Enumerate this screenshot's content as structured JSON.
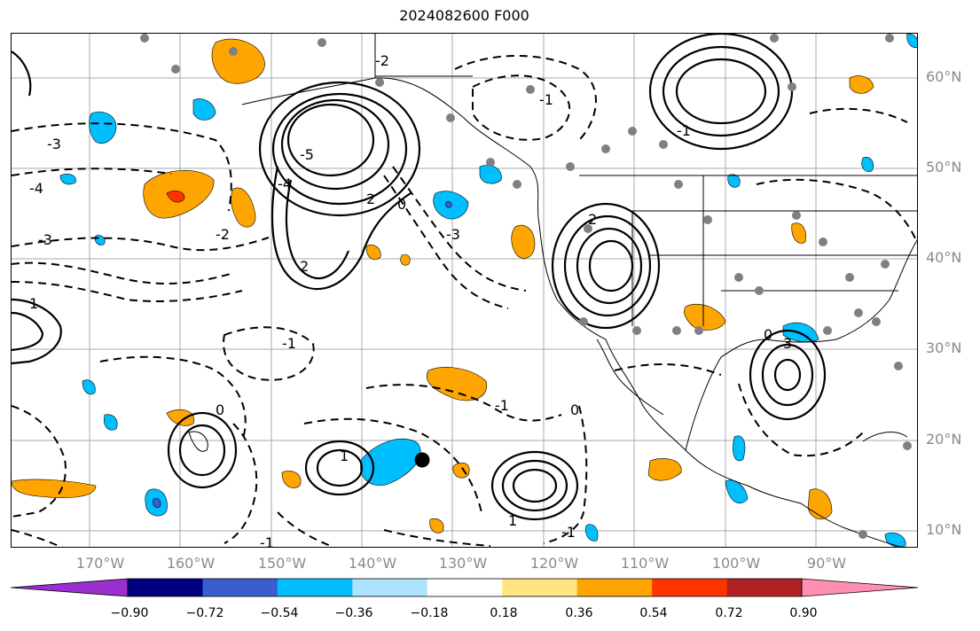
{
  "title": "2024082600 F000",
  "lat_labels": [
    "60°N",
    "50°N",
    "40°N",
    "30°N",
    "20°N",
    "10°N"
  ],
  "lon_labels": [
    "170°W",
    "160°W",
    "150°W",
    "140°W",
    "130°W",
    "120°W",
    "110°W",
    "100°W",
    "90°W"
  ],
  "contour_labels": [
    "-3",
    "-4",
    "-3",
    "-2",
    "-1",
    "0",
    "-1",
    "0",
    "-1",
    "1",
    "-1",
    "2",
    "-4",
    "-5",
    "2",
    "-2",
    "-3",
    "0",
    "2",
    "3",
    "-1",
    "1",
    "-1",
    "0",
    "1"
  ],
  "colorbar": {
    "tick_labels": [
      "−0.90",
      "−0.72",
      "−0.54",
      "−0.36",
      "−0.18",
      "0.18",
      "0.36",
      "0.54",
      "0.72",
      "0.90"
    ],
    "colors": [
      "#9b30d0",
      "#000080",
      "#3a5fcd",
      "#00bfff",
      "#aee3ff",
      "#ffffff",
      "#ffe680",
      "#ffa500",
      "#ff3300",
      "#b22222",
      "#ff8fb0"
    ]
  },
  "colors": {
    "gridline": "#a9a9a9",
    "contour": "#000000",
    "station_dot": "#808080",
    "label": "#8a8a8a"
  }
}
